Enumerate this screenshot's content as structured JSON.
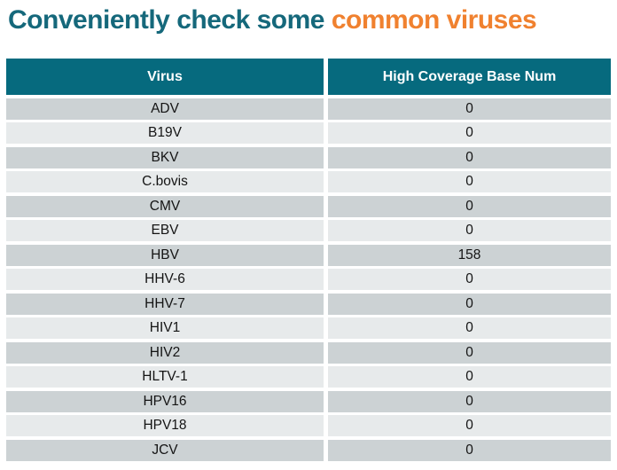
{
  "title": {
    "prefix": "Conveniently check some ",
    "highlight": "common viruses"
  },
  "colors": {
    "title_teal": "#15687b",
    "title_orange": "#f0812f",
    "header_background": "#066a7e",
    "header_text": "#ffffff",
    "row_stripe_dark": "#ccd2d4",
    "row_stripe_light": "#e7eaeb"
  },
  "table": {
    "columns": [
      "Virus",
      "High Coverage Base Num"
    ],
    "rows": [
      {
        "virus": "ADV",
        "value": "0"
      },
      {
        "virus": "B19V",
        "value": "0"
      },
      {
        "virus": "BKV",
        "value": "0"
      },
      {
        "virus": "C.bovis",
        "value": "0"
      },
      {
        "virus": "CMV",
        "value": "0"
      },
      {
        "virus": "EBV",
        "value": "0"
      },
      {
        "virus": "HBV",
        "value": "158"
      },
      {
        "virus": "HHV-6",
        "value": "0"
      },
      {
        "virus": "HHV-7",
        "value": "0"
      },
      {
        "virus": "HIV1",
        "value": "0"
      },
      {
        "virus": "HIV2",
        "value": "0"
      },
      {
        "virus": "HLTV-1",
        "value": "0"
      },
      {
        "virus": "HPV16",
        "value": "0"
      },
      {
        "virus": "HPV18",
        "value": "0"
      },
      {
        "virus": "JCV",
        "value": "0"
      }
    ]
  },
  "chart_data": {
    "type": "table",
    "title": "Conveniently check some common viruses",
    "columns": [
      "Virus",
      "High Coverage Base Num"
    ],
    "categories": [
      "ADV",
      "B19V",
      "BKV",
      "C.bovis",
      "CMV",
      "EBV",
      "HBV",
      "HHV-6",
      "HHV-7",
      "HIV1",
      "HIV2",
      "HLTV-1",
      "HPV16",
      "HPV18",
      "JCV"
    ],
    "values": [
      0,
      0,
      0,
      0,
      0,
      0,
      158,
      0,
      0,
      0,
      0,
      0,
      0,
      0,
      0
    ]
  }
}
